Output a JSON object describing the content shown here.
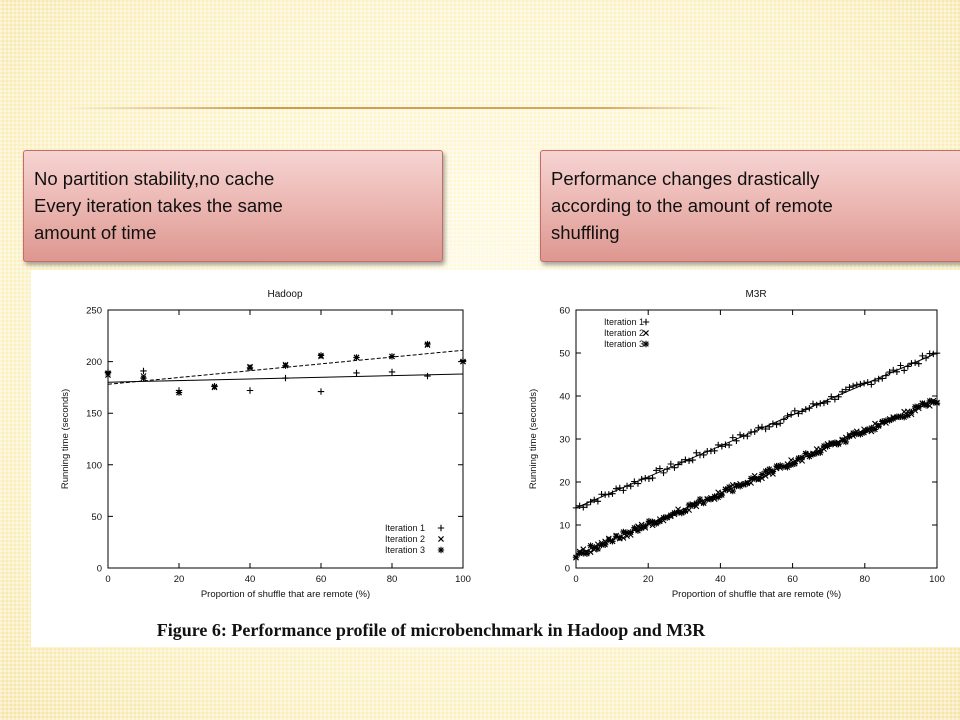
{
  "callouts": {
    "left": "No partition stability,no cache\nEvery iteration takes the same\namount of time",
    "right": "Performance changes drastically\naccording to the amount of remote\nshuffling"
  },
  "caption": "Figure 6: Performance profile of microbenchmark in Hadoop and M3R",
  "chart_data": [
    {
      "type": "scatter",
      "title": "Hadoop",
      "xlabel": "Proportion of shuffle that are remote (%)",
      "ylabel": "Running time (seconds)",
      "xlim": [
        0,
        100
      ],
      "ylim": [
        0,
        250
      ],
      "xticks": [
        0,
        20,
        40,
        60,
        80,
        100
      ],
      "yticks": [
        0,
        50,
        100,
        150,
        200,
        250
      ],
      "legend": "bottom-right",
      "series": [
        {
          "name": "Iteration 1",
          "marker": "+",
          "points": [
            [
              0,
              190
            ],
            [
              10,
              191
            ],
            [
              20,
              172
            ],
            [
              30,
              176
            ],
            [
              40,
              172
            ],
            [
              50,
              184
            ],
            [
              60,
              171
            ],
            [
              70,
              189
            ],
            [
              80,
              190
            ],
            [
              90,
              186
            ],
            [
              100,
              201
            ]
          ]
        },
        {
          "name": "Iteration 2",
          "marker": "x",
          "points": [
            [
              0,
              187
            ],
            [
              10,
              186
            ],
            [
              20,
              170
            ],
            [
              30,
              175
            ],
            [
              40,
              195
            ],
            [
              50,
              197
            ],
            [
              60,
              205
            ],
            [
              70,
              204
            ],
            [
              80,
              205
            ],
            [
              90,
              216
            ],
            [
              100,
              200
            ]
          ]
        },
        {
          "name": "Iteration 3",
          "marker": "*",
          "points": [
            [
              0,
              189
            ],
            [
              10,
              184
            ],
            [
              20,
              170
            ],
            [
              30,
              176
            ],
            [
              40,
              194
            ],
            [
              50,
              196
            ],
            [
              60,
              206
            ],
            [
              70,
              204
            ],
            [
              80,
              205
            ],
            [
              90,
              217
            ],
            [
              100,
              200
            ]
          ]
        }
      ],
      "fit_lines": [
        {
          "style": "solid",
          "from": [
            0,
            180
          ],
          "to": [
            100,
            188
          ]
        },
        {
          "style": "dashed",
          "from": [
            0,
            178
          ],
          "to": [
            100,
            211
          ]
        }
      ]
    },
    {
      "type": "scatter",
      "title": "M3R",
      "xlabel": "Proportion of shuffle that are remote (%)",
      "ylabel": "Running time (seconds)",
      "xlim": [
        0,
        100
      ],
      "ylim": [
        0,
        60
      ],
      "xticks": [
        0,
        20,
        40,
        60,
        80,
        100
      ],
      "yticks": [
        0,
        10,
        20,
        30,
        40,
        50,
        60
      ],
      "legend": "top-left",
      "series": [
        {
          "name": "Iteration 1",
          "marker": "+",
          "trend": {
            "from": [
              0,
              14
            ],
            "to": [
              100,
              50
            ]
          },
          "count": 100,
          "jitter": 0.8
        },
        {
          "name": "Iteration 2",
          "marker": "x",
          "trend": {
            "from": [
              0,
              3
            ],
            "to": [
              100,
              39
            ]
          },
          "count": 100,
          "jitter": 0.8
        },
        {
          "name": "Iteration 3",
          "marker": "*",
          "trend": {
            "from": [
              0,
              3
            ],
            "to": [
              100,
              39
            ]
          },
          "count": 100,
          "jitter": 0.8
        }
      ],
      "fit_lines": [
        {
          "style": "solid",
          "from": [
            0,
            14
          ],
          "to": [
            100,
            50
          ]
        },
        {
          "style": "solid",
          "from": [
            0,
            3
          ],
          "to": [
            100,
            39
          ]
        }
      ]
    }
  ]
}
